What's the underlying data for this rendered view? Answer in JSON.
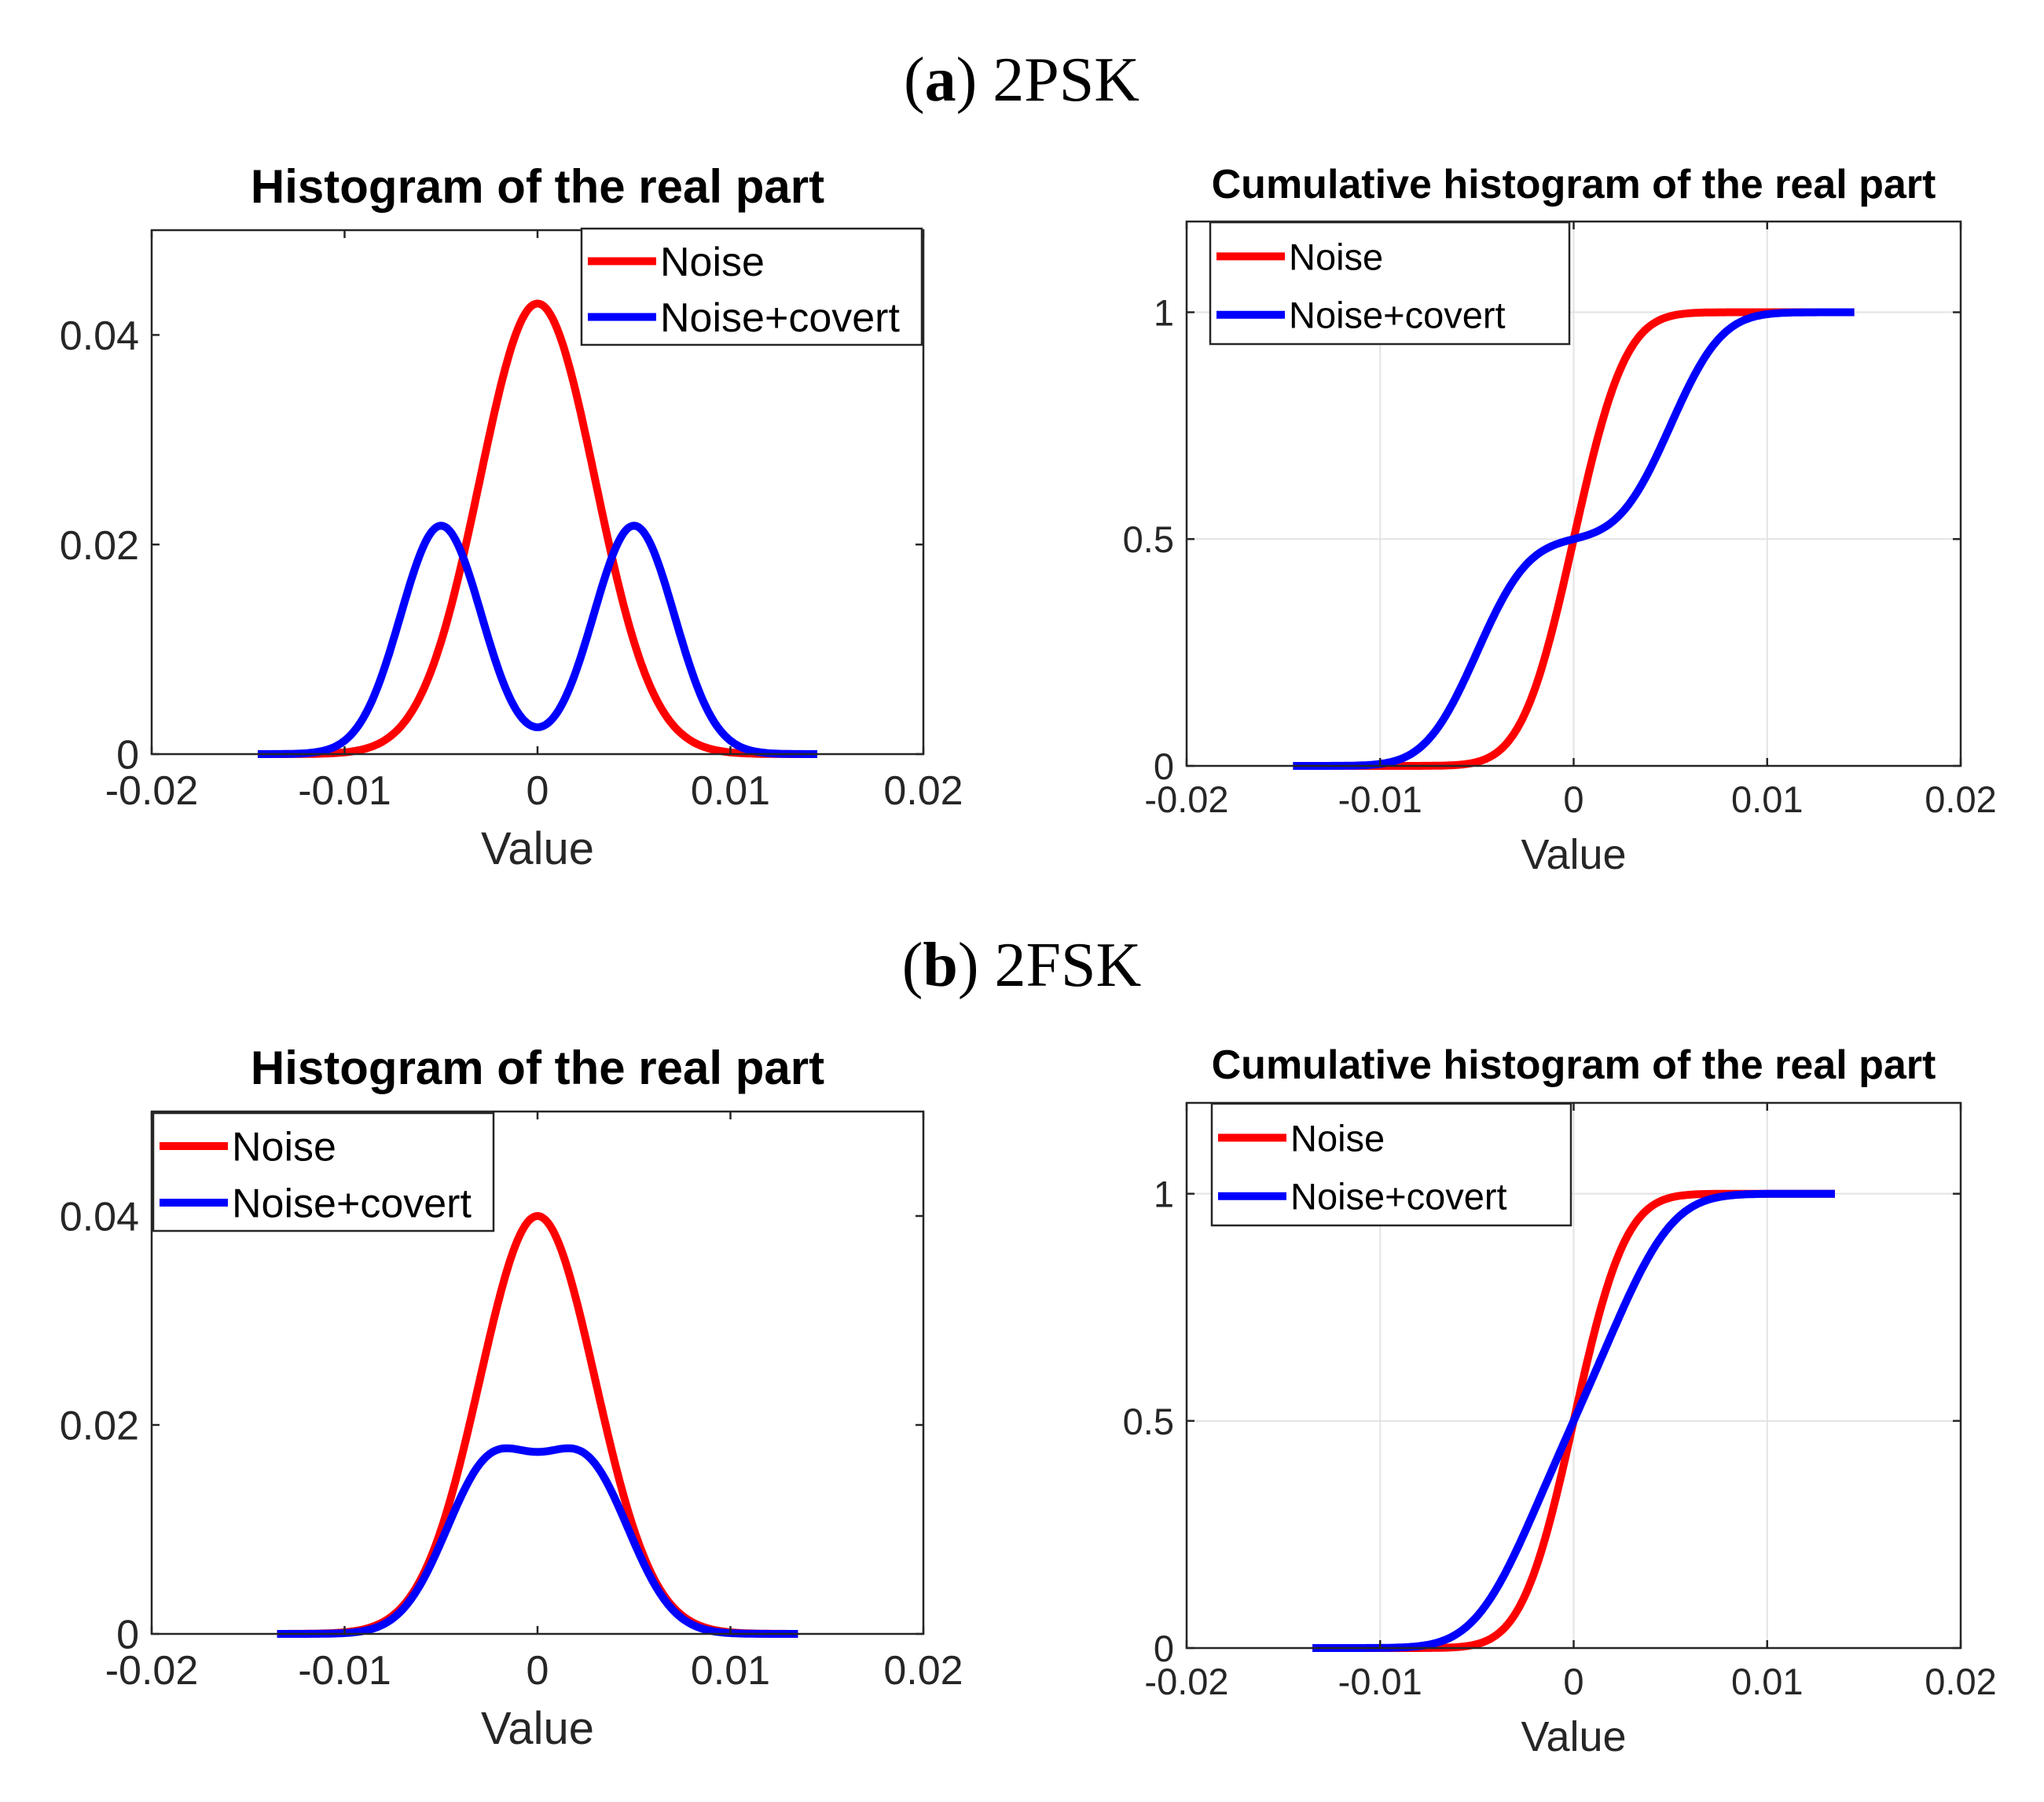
{
  "panels": [
    {
      "letter": "a",
      "title": "2PSK"
    },
    {
      "letter": "b",
      "title": "2FSK"
    }
  ],
  "chart_data": [
    {
      "id": "a-hist",
      "type": "line",
      "title": "Histogram of the real part",
      "xlabel": "Value",
      "ylabel": "",
      "xlim": [
        -0.02,
        0.02
      ],
      "ylim": [
        0,
        0.05
      ],
      "xticks": [
        -0.02,
        -0.01,
        0,
        0.01,
        0.02
      ],
      "xtick_labels": [
        "-0.02",
        "-0.01",
        "0",
        "0.01",
        "0.02"
      ],
      "yticks": [
        0,
        0.02,
        0.04
      ],
      "ytick_labels": [
        "0",
        "0.02",
        "0.04"
      ],
      "grid": false,
      "legend_position": "top-right",
      "series": [
        {
          "name": "Noise",
          "color": "#ff0000",
          "kind": "gauss",
          "peaks": [
            0
          ],
          "sigma": 0.003,
          "amp": 0.043,
          "range": [
            -0.0145,
            0.0145
          ]
        },
        {
          "name": "Noise+covert",
          "color": "#0000ff",
          "kind": "gauss",
          "peaks": [
            -0.005,
            0.005
          ],
          "sigma": 0.0021,
          "amp": 0.0218,
          "range": [
            -0.0145,
            0.0145
          ]
        }
      ]
    },
    {
      "id": "a-cum",
      "type": "line",
      "title": "Cumulative histogram of the real part",
      "xlabel": "Value",
      "ylabel": "",
      "xlim": [
        -0.02,
        0.02
      ],
      "ylim": [
        0,
        1.2
      ],
      "xticks": [
        -0.02,
        -0.01,
        0,
        0.01,
        0.02
      ],
      "xtick_labels": [
        "-0.02",
        "-0.01",
        "0",
        "0.01",
        "0.02"
      ],
      "yticks": [
        0,
        0.5,
        1
      ],
      "ytick_labels": [
        "0",
        "0.5",
        "1"
      ],
      "grid": true,
      "legend_position": "top-left",
      "series": [
        {
          "name": "Noise",
          "color": "#ff0000",
          "kind": "cdf",
          "peaks": [
            0
          ],
          "sigma": 0.0021,
          "range": [
            -0.0145,
            0.0145
          ]
        },
        {
          "name": "Noise+covert",
          "color": "#0000ff",
          "kind": "cdf",
          "peaks": [
            -0.005,
            0.005
          ],
          "sigma": 0.0021,
          "range": [
            -0.0145,
            0.0145
          ]
        }
      ]
    },
    {
      "id": "b-hist",
      "type": "line",
      "title": "Histogram of the real part",
      "xlabel": "Value",
      "ylabel": "",
      "xlim": [
        -0.02,
        0.02
      ],
      "ylim": [
        0,
        0.05
      ],
      "xticks": [
        -0.02,
        -0.01,
        0,
        0.01,
        0.02
      ],
      "xtick_labels": [
        "-0.02",
        "-0.01",
        "0",
        "0.01",
        "0.02"
      ],
      "yticks": [
        0,
        0.02,
        0.04
      ],
      "ytick_labels": [
        "0",
        "0.02",
        "0.04"
      ],
      "grid": false,
      "legend_position": "top-left",
      "series": [
        {
          "name": "Noise",
          "color": "#ff0000",
          "kind": "gauss",
          "peaks": [
            0
          ],
          "sigma": 0.003,
          "amp": 0.04,
          "range": [
            -0.0135,
            0.0135
          ]
        },
        {
          "name": "Noise+covert",
          "color": "#0000ff",
          "kind": "gauss",
          "peaks": [
            -0.0025,
            0.0025
          ],
          "sigma": 0.0023,
          "amp": 0.0172,
          "range": [
            -0.0135,
            0.0135
          ]
        }
      ]
    },
    {
      "id": "b-cum",
      "type": "line",
      "title": "Cumulative histogram of the real part",
      "xlabel": "Value",
      "ylabel": "",
      "xlim": [
        -0.02,
        0.02
      ],
      "ylim": [
        0,
        1.2
      ],
      "xticks": [
        -0.02,
        -0.01,
        0,
        0.01,
        0.02
      ],
      "xtick_labels": [
        "-0.02",
        "-0.01",
        "0",
        "0.01",
        "0.02"
      ],
      "yticks": [
        0,
        0.5,
        1
      ],
      "ytick_labels": [
        "0",
        "0.5",
        "1"
      ],
      "grid": true,
      "legend_position": "top-left",
      "series": [
        {
          "name": "Noise",
          "color": "#ff0000",
          "kind": "cdf",
          "peaks": [
            0
          ],
          "sigma": 0.0021,
          "range": [
            -0.0135,
            0.0135
          ]
        },
        {
          "name": "Noise+covert",
          "color": "#0000ff",
          "kind": "cdf",
          "peaks": [
            -0.0025,
            0.0025
          ],
          "sigma": 0.0023,
          "range": [
            -0.0135,
            0.0135
          ]
        }
      ]
    }
  ]
}
